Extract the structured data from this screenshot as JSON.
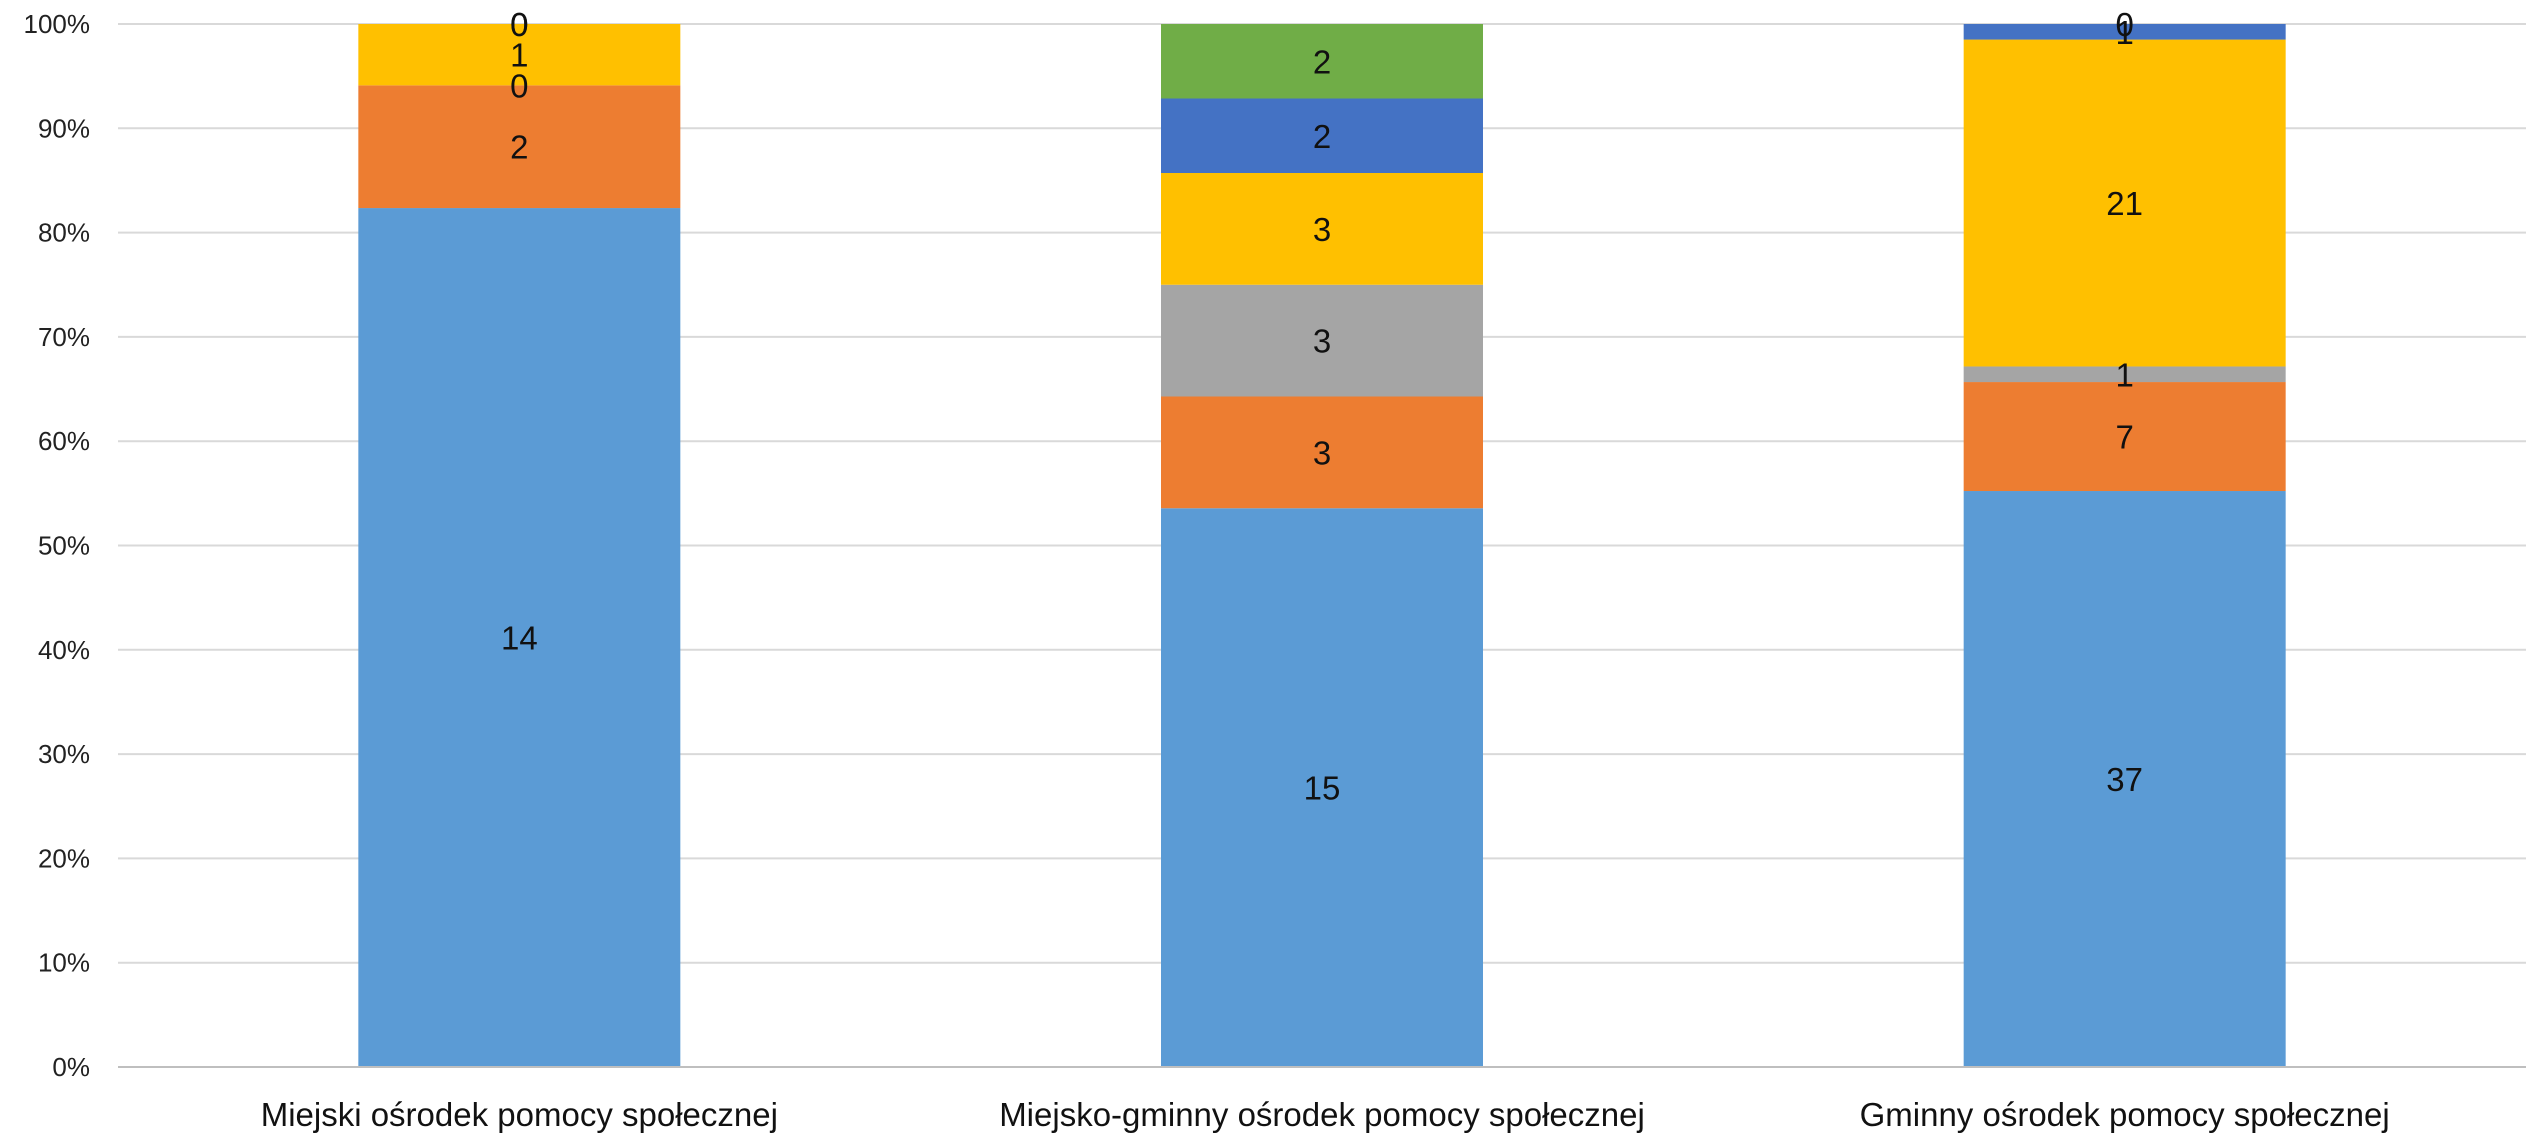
{
  "chart_data": {
    "type": "bar",
    "stacked": true,
    "percent_stacked": true,
    "categories": [
      "Miejski ośrodek pomocy społecznej",
      "Miejsko-gminny ośrodek pomocy społecznej",
      "Gminny ośrodek pomocy społecznej"
    ],
    "series": [
      {
        "values": [
          14,
          15,
          37
        ],
        "color": "#5b9bd5"
      },
      {
        "values": [
          2,
          3,
          7
        ],
        "color": "#ed7d31"
      },
      {
        "values": [
          0,
          3,
          1
        ],
        "color": "#a5a5a5"
      },
      {
        "values": [
          1,
          3,
          21
        ],
        "color": "#ffc000"
      },
      {
        "values": [
          0,
          2,
          1
        ],
        "color": "#4472c4"
      },
      {
        "values": [
          0,
          2,
          0
        ],
        "color": "#70ad47"
      }
    ],
    "y_ticks": [
      "0%",
      "10%",
      "20%",
      "30%",
      "40%",
      "50%",
      "60%",
      "70%",
      "80%",
      "90%",
      "100%"
    ],
    "ylim": [
      0,
      100
    ],
    "grid": true,
    "legend": "none",
    "xlabel": "",
    "ylabel": "",
    "title": ""
  }
}
